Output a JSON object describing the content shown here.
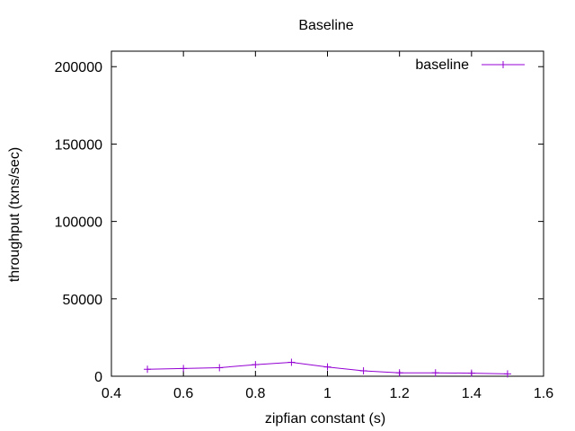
{
  "chart_data": {
    "type": "line",
    "title": "Baseline",
    "xlabel": "zipfian constant (s)",
    "ylabel": "throughput (txns/sec)",
    "xlim": [
      0.4,
      1.6
    ],
    "ylim": [
      0,
      210000
    ],
    "xticks": [
      0.4,
      0.6,
      0.8,
      1,
      1.2,
      1.4,
      1.6
    ],
    "xtick_labels": [
      "0.4",
      "0.6",
      "0.8",
      "1",
      "1.2",
      "1.4",
      "1.6"
    ],
    "yticks": [
      0,
      50000,
      100000,
      150000,
      200000
    ],
    "ytick_labels": [
      "0",
      "50000",
      "100000",
      "150000",
      "200000"
    ],
    "grid": false,
    "legend_position": "top-right",
    "series": [
      {
        "name": "baseline",
        "color": "#9400d3",
        "marker": "plus",
        "x": [
          0.5,
          0.6,
          0.7,
          0.8,
          0.9,
          1.0,
          1.1,
          1.2,
          1.3,
          1.4,
          1.5
        ],
        "y": [
          4500,
          5000,
          5500,
          7500,
          9000,
          6000,
          3500,
          2200,
          2200,
          2000,
          1500
        ]
      }
    ]
  }
}
